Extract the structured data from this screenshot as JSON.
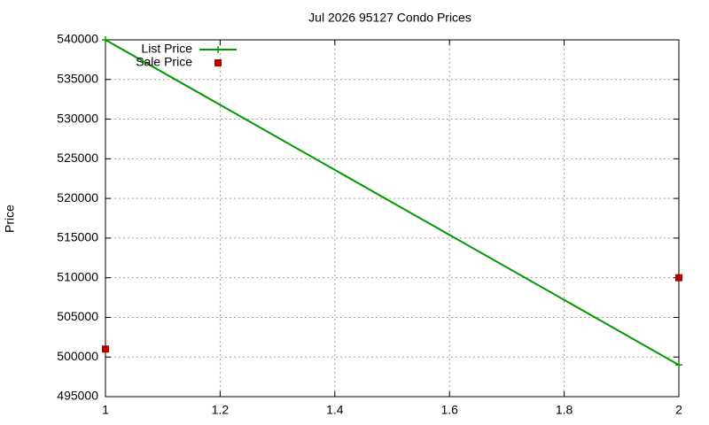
{
  "chart_data": {
    "type": "line",
    "title": "Jul 2026 95127 Condo Prices",
    "y_label": "Price",
    "x": [
      1,
      2
    ],
    "series": [
      {
        "name": "List Price",
        "color": "#009900",
        "style": "linespoints",
        "values": [
          540000,
          499000
        ]
      },
      {
        "name": "Sale Price",
        "color": "#b20000",
        "style": "points",
        "values": [
          501000,
          510000
        ]
      }
    ],
    "xlim": [
      1,
      2
    ],
    "xticks": [
      1,
      1.2,
      1.4,
      1.6,
      1.8,
      2
    ],
    "ylim": [
      495000,
      540000
    ],
    "yticks": [
      495000,
      500000,
      505000,
      510000,
      515000,
      520000,
      525000,
      530000,
      535000,
      540000
    ],
    "grid": true,
    "legend": "top-left"
  }
}
